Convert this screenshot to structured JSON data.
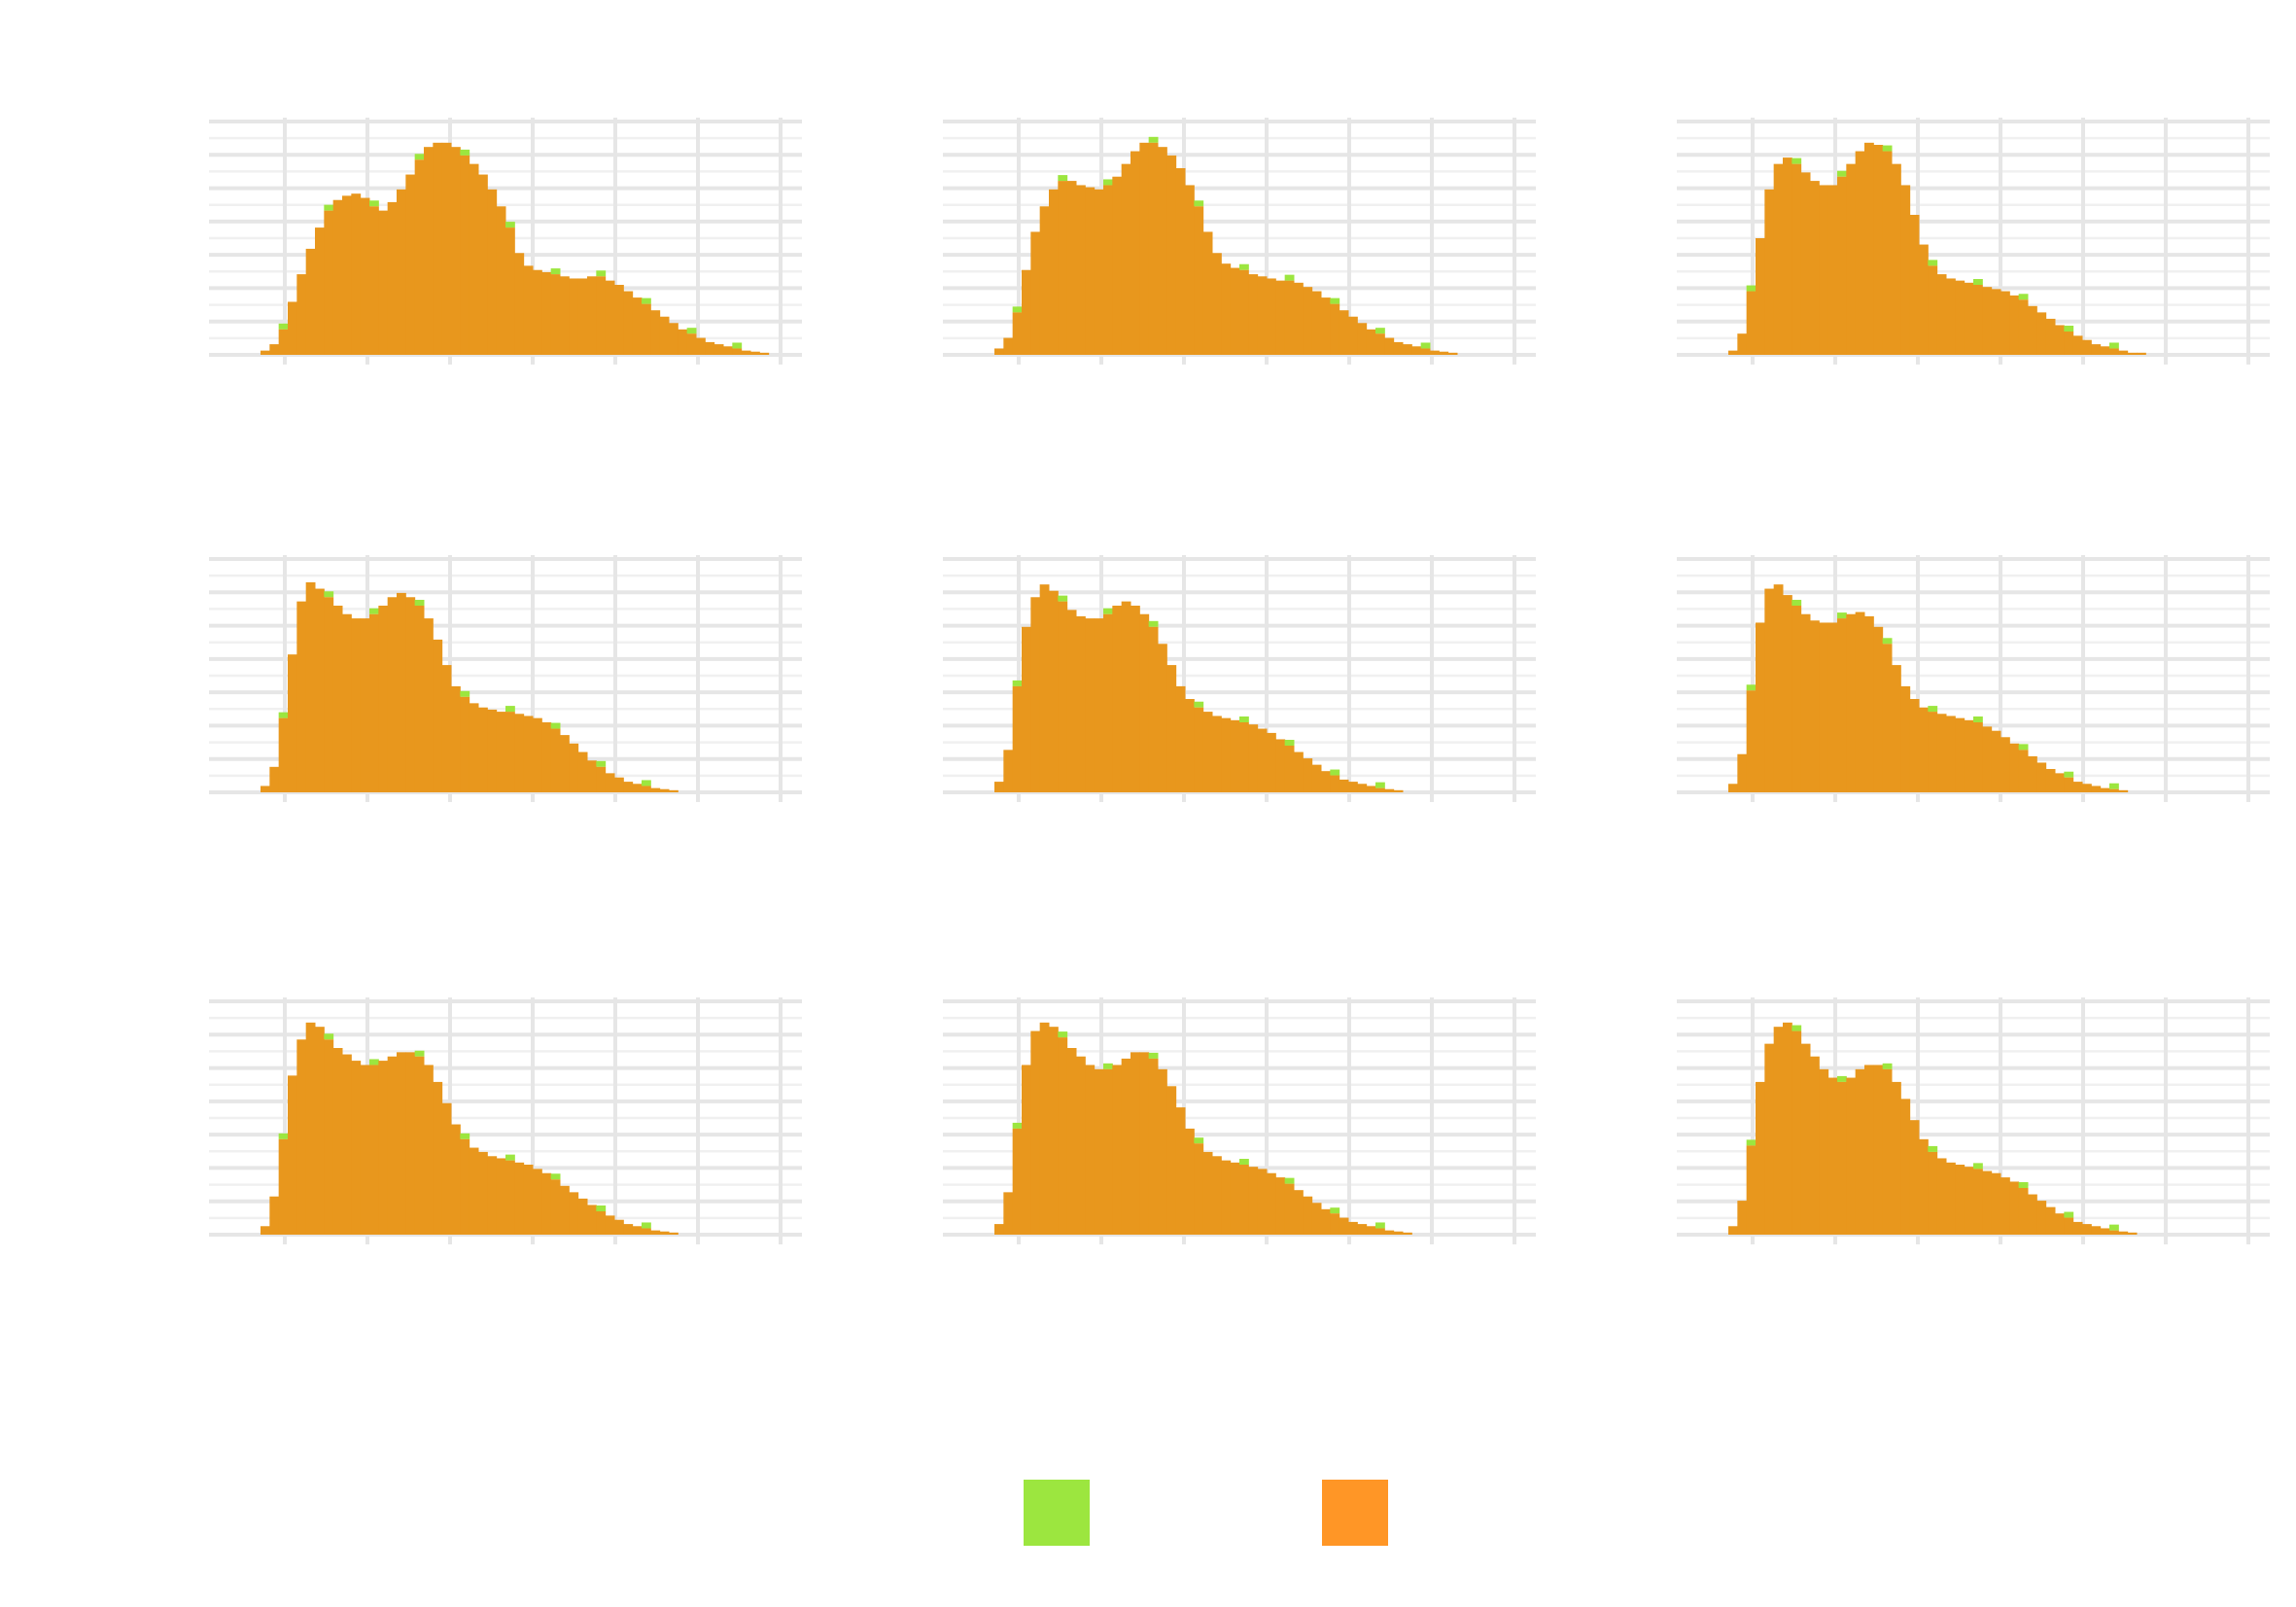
{
  "colors": {
    "series_a": "#9ce63f",
    "series_b": "#ff9626",
    "overlap": "#e8971d",
    "grid_major": "#e6e6e6",
    "grid_minor": "#f0f0f0",
    "background": "#ffffff"
  },
  "legend": {
    "placement": "bottom",
    "items": [
      {
        "color": "#9ce63f",
        "label": ""
      },
      {
        "color": "#ff9626",
        "label": ""
      }
    ]
  },
  "chart_data": [
    {
      "type": "bar",
      "panel": 1,
      "grid": true,
      "x_gridlines": 7,
      "y_gridlines": 7,
      "xlim": [
        0,
        60
      ],
      "ylim": [
        0,
        1.1
      ],
      "bins": 60,
      "values": [
        0,
        0,
        0,
        0.02,
        0.05,
        0.12,
        0.25,
        0.38,
        0.5,
        0.6,
        0.68,
        0.73,
        0.75,
        0.76,
        0.74,
        0.7,
        0.68,
        0.72,
        0.78,
        0.85,
        0.92,
        0.98,
        1.0,
        1.0,
        0.98,
        0.94,
        0.9,
        0.85,
        0.78,
        0.7,
        0.6,
        0.48,
        0.42,
        0.4,
        0.39,
        0.38,
        0.37,
        0.36,
        0.36,
        0.37,
        0.37,
        0.35,
        0.33,
        0.3,
        0.27,
        0.24,
        0.21,
        0.18,
        0.15,
        0.12,
        0.1,
        0.08,
        0.06,
        0.05,
        0.04,
        0.03,
        0.02,
        0.015,
        0.01,
        0
      ]
    },
    {
      "type": "bar",
      "panel": 2,
      "grid": true,
      "x_gridlines": 7,
      "y_gridlines": 7,
      "xlim": [
        0,
        60
      ],
      "ylim": [
        0,
        1.1
      ],
      "bins": 60,
      "values": [
        0,
        0,
        0,
        0.03,
        0.08,
        0.2,
        0.4,
        0.58,
        0.7,
        0.78,
        0.82,
        0.82,
        0.8,
        0.79,
        0.78,
        0.8,
        0.84,
        0.9,
        0.96,
        1.0,
        1.0,
        0.98,
        0.94,
        0.88,
        0.8,
        0.7,
        0.58,
        0.48,
        0.43,
        0.41,
        0.4,
        0.38,
        0.37,
        0.36,
        0.35,
        0.35,
        0.34,
        0.32,
        0.3,
        0.27,
        0.24,
        0.21,
        0.18,
        0.15,
        0.12,
        0.1,
        0.08,
        0.06,
        0.05,
        0.04,
        0.03,
        0.02,
        0.015,
        0.01,
        0,
        0,
        0,
        0,
        0,
        0
      ]
    },
    {
      "type": "bar",
      "panel": 3,
      "grid": true,
      "x_gridlines": 7,
      "y_gridlines": 7,
      "xlim": [
        0,
        60
      ],
      "ylim": [
        0,
        1.1
      ],
      "bins": 60,
      "values": [
        0,
        0,
        0,
        0.02,
        0.1,
        0.3,
        0.55,
        0.78,
        0.9,
        0.93,
        0.9,
        0.86,
        0.82,
        0.8,
        0.8,
        0.84,
        0.9,
        0.96,
        1.0,
        0.99,
        0.96,
        0.9,
        0.8,
        0.66,
        0.52,
        0.42,
        0.38,
        0.36,
        0.35,
        0.34,
        0.33,
        0.32,
        0.31,
        0.3,
        0.28,
        0.26,
        0.23,
        0.2,
        0.17,
        0.14,
        0.11,
        0.09,
        0.07,
        0.05,
        0.04,
        0.03,
        0.02,
        0.01,
        0.01,
        0,
        0,
        0,
        0,
        0,
        0,
        0,
        0,
        0,
        0,
        0
      ]
    },
    {
      "type": "bar",
      "panel": 4,
      "grid": true,
      "x_gridlines": 7,
      "y_gridlines": 7,
      "xlim": [
        0,
        60
      ],
      "ylim": [
        0,
        1.1
      ],
      "bins": 60,
      "values": [
        0,
        0,
        0,
        0.03,
        0.12,
        0.35,
        0.65,
        0.9,
        0.99,
        0.96,
        0.92,
        0.88,
        0.84,
        0.82,
        0.82,
        0.84,
        0.88,
        0.92,
        0.94,
        0.92,
        0.88,
        0.82,
        0.72,
        0.6,
        0.5,
        0.45,
        0.42,
        0.4,
        0.39,
        0.38,
        0.38,
        0.37,
        0.36,
        0.35,
        0.33,
        0.3,
        0.27,
        0.23,
        0.19,
        0.15,
        0.12,
        0.09,
        0.07,
        0.05,
        0.04,
        0.03,
        0.02,
        0.015,
        0.01,
        0,
        0,
        0,
        0,
        0,
        0,
        0,
        0,
        0,
        0,
        0
      ]
    },
    {
      "type": "bar",
      "panel": 5,
      "grid": true,
      "x_gridlines": 7,
      "y_gridlines": 7,
      "xlim": [
        0,
        60
      ],
      "ylim": [
        0,
        1.1
      ],
      "bins": 60,
      "values": [
        0,
        0,
        0,
        0.05,
        0.2,
        0.5,
        0.78,
        0.92,
        0.98,
        0.95,
        0.9,
        0.86,
        0.83,
        0.82,
        0.82,
        0.84,
        0.88,
        0.9,
        0.88,
        0.84,
        0.78,
        0.7,
        0.6,
        0.5,
        0.44,
        0.4,
        0.38,
        0.36,
        0.35,
        0.34,
        0.33,
        0.32,
        0.3,
        0.28,
        0.25,
        0.22,
        0.19,
        0.16,
        0.13,
        0.1,
        0.08,
        0.06,
        0.05,
        0.04,
        0.03,
        0.02,
        0.015,
        0.01,
        0,
        0,
        0,
        0,
        0,
        0,
        0,
        0,
        0,
        0,
        0,
        0
      ]
    },
    {
      "type": "bar",
      "panel": 6,
      "grid": true,
      "x_gridlines": 7,
      "y_gridlines": 7,
      "xlim": [
        0,
        60
      ],
      "ylim": [
        0,
        1.1
      ],
      "bins": 60,
      "values": [
        0,
        0,
        0,
        0.04,
        0.18,
        0.48,
        0.8,
        0.96,
        0.98,
        0.93,
        0.88,
        0.84,
        0.81,
        0.8,
        0.8,
        0.82,
        0.84,
        0.85,
        0.83,
        0.78,
        0.7,
        0.6,
        0.5,
        0.44,
        0.4,
        0.38,
        0.37,
        0.36,
        0.35,
        0.34,
        0.33,
        0.31,
        0.29,
        0.26,
        0.23,
        0.2,
        0.17,
        0.14,
        0.11,
        0.09,
        0.07,
        0.05,
        0.04,
        0.03,
        0.02,
        0.015,
        0.01,
        0,
        0,
        0,
        0,
        0,
        0,
        0,
        0,
        0,
        0,
        0,
        0,
        0
      ]
    },
    {
      "type": "bar",
      "panel": 7,
      "grid": true,
      "x_gridlines": 7,
      "y_gridlines": 7,
      "xlim": [
        0,
        60
      ],
      "ylim": [
        0,
        1.1
      ],
      "bins": 60,
      "values": [
        0,
        0,
        0,
        0.04,
        0.18,
        0.45,
        0.75,
        0.92,
        1.0,
        0.98,
        0.92,
        0.88,
        0.85,
        0.82,
        0.8,
        0.8,
        0.82,
        0.84,
        0.86,
        0.86,
        0.84,
        0.8,
        0.72,
        0.62,
        0.52,
        0.45,
        0.41,
        0.39,
        0.37,
        0.36,
        0.35,
        0.34,
        0.33,
        0.31,
        0.29,
        0.26,
        0.23,
        0.2,
        0.17,
        0.14,
        0.11,
        0.09,
        0.07,
        0.05,
        0.04,
        0.03,
        0.02,
        0.015,
        0.01,
        0,
        0,
        0,
        0,
        0,
        0,
        0,
        0,
        0,
        0,
        0
      ]
    },
    {
      "type": "bar",
      "panel": 8,
      "grid": true,
      "x_gridlines": 7,
      "y_gridlines": 7,
      "xlim": [
        0,
        60
      ],
      "ylim": [
        0,
        1.1
      ],
      "bins": 60,
      "values": [
        0,
        0,
        0,
        0.05,
        0.2,
        0.5,
        0.8,
        0.96,
        1.0,
        0.98,
        0.93,
        0.88,
        0.84,
        0.8,
        0.78,
        0.78,
        0.8,
        0.83,
        0.86,
        0.86,
        0.83,
        0.78,
        0.7,
        0.6,
        0.5,
        0.43,
        0.39,
        0.37,
        0.35,
        0.34,
        0.33,
        0.32,
        0.31,
        0.29,
        0.27,
        0.24,
        0.21,
        0.18,
        0.15,
        0.12,
        0.1,
        0.08,
        0.06,
        0.05,
        0.04,
        0.03,
        0.02,
        0.015,
        0.01,
        0,
        0,
        0,
        0,
        0,
        0,
        0,
        0,
        0,
        0,
        0
      ]
    },
    {
      "type": "bar",
      "panel": 9,
      "grid": true,
      "x_gridlines": 7,
      "y_gridlines": 7,
      "xlim": [
        0,
        60
      ],
      "ylim": [
        0,
        1.1
      ],
      "bins": 60,
      "values": [
        0,
        0,
        0,
        0.04,
        0.16,
        0.42,
        0.72,
        0.9,
        0.98,
        1.0,
        0.96,
        0.9,
        0.84,
        0.78,
        0.74,
        0.72,
        0.74,
        0.78,
        0.8,
        0.8,
        0.78,
        0.72,
        0.64,
        0.54,
        0.45,
        0.39,
        0.36,
        0.34,
        0.33,
        0.32,
        0.31,
        0.3,
        0.29,
        0.27,
        0.25,
        0.22,
        0.19,
        0.16,
        0.13,
        0.1,
        0.08,
        0.06,
        0.05,
        0.04,
        0.03,
        0.02,
        0.015,
        0.01,
        0,
        0,
        0,
        0,
        0,
        0,
        0,
        0,
        0,
        0,
        0,
        0
      ]
    }
  ]
}
